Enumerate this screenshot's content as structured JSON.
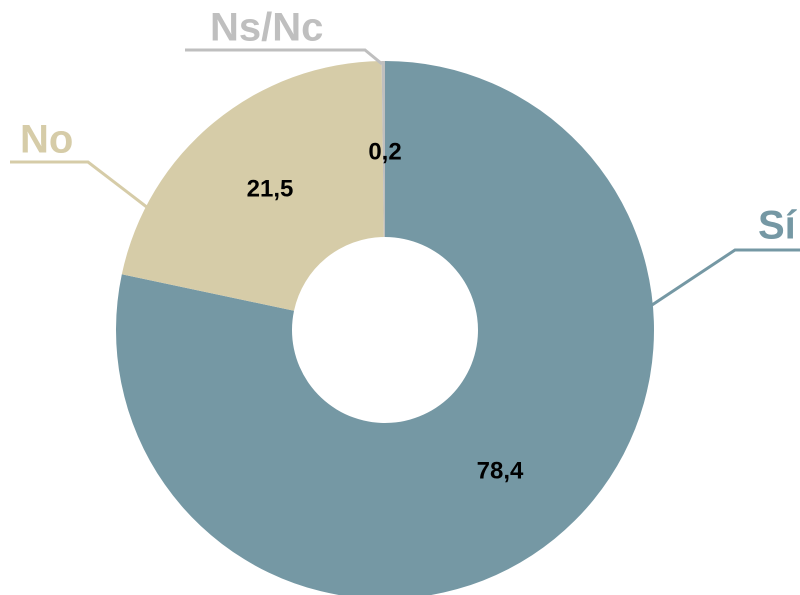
{
  "chart_data": {
    "type": "donut",
    "categories": [
      "Sí",
      "No",
      "Ns/Nc"
    ],
    "values": [
      78.4,
      21.5,
      0.2
    ],
    "value_labels": [
      "78,4",
      "21,5",
      "0,2"
    ],
    "colors": [
      "#7598a4",
      "#d6cca8",
      "#bfbfbf"
    ]
  }
}
